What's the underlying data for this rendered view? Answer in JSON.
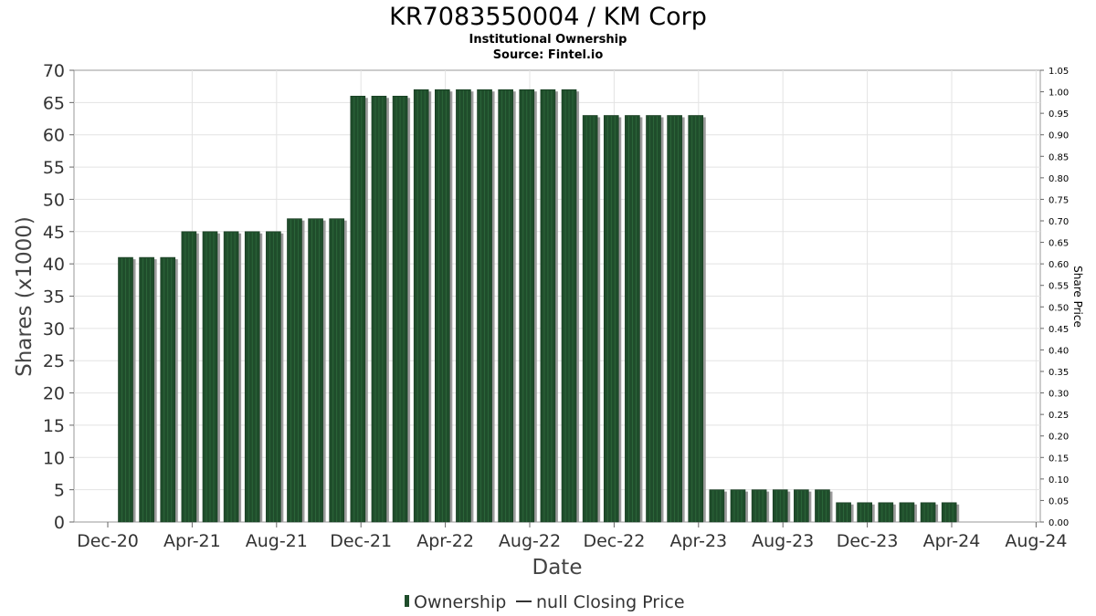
{
  "chart_data": {
    "type": "bar",
    "title": "KR7083550004 / KM Corp",
    "subtitle_lines": [
      "Institutional Ownership",
      "Source: Fintel.io"
    ],
    "xlabel": "Date",
    "ylabel": "Shares (x1000)",
    "y2label": "Share Price",
    "ylim": [
      0,
      70
    ],
    "y2lim": [
      0,
      1.05
    ],
    "yticks": [
      "0",
      "5",
      "10",
      "15",
      "20",
      "25",
      "30",
      "35",
      "40",
      "45",
      "50",
      "55",
      "60",
      "65",
      "70"
    ],
    "y2ticks": [
      "0.00",
      "0.05",
      "0.10",
      "0.15",
      "0.20",
      "0.25",
      "0.30",
      "0.35",
      "0.40",
      "0.45",
      "0.50",
      "0.55",
      "0.60",
      "0.65",
      "0.70",
      "0.75",
      "0.80",
      "0.85",
      "0.90",
      "0.95",
      "1.00",
      "1.05"
    ],
    "xticks": [
      "Dec-20",
      "Apr-21",
      "Aug-21",
      "Dec-21",
      "Apr-22",
      "Aug-22",
      "Dec-22",
      "Apr-23",
      "Aug-23",
      "Dec-23",
      "Apr-24",
      "Aug-24"
    ],
    "grid": true,
    "legend_position": "bottom",
    "series": [
      {
        "name": "Ownership",
        "color": "#1f4d2b",
        "values": [
          41,
          41,
          41,
          45,
          45,
          45,
          45,
          45,
          47,
          47,
          47,
          66,
          66,
          66,
          67,
          67,
          67,
          67,
          67,
          67,
          67,
          67,
          63,
          63,
          63,
          63,
          63,
          63,
          5,
          5,
          5,
          5,
          5,
          5,
          3,
          3,
          3,
          3,
          3,
          3
        ]
      }
    ],
    "legend": [
      {
        "label": "Ownership",
        "kind": "bar",
        "color": "#1f4d2b"
      },
      {
        "label": "null Closing Price",
        "kind": "line",
        "color": "#333333"
      }
    ]
  }
}
